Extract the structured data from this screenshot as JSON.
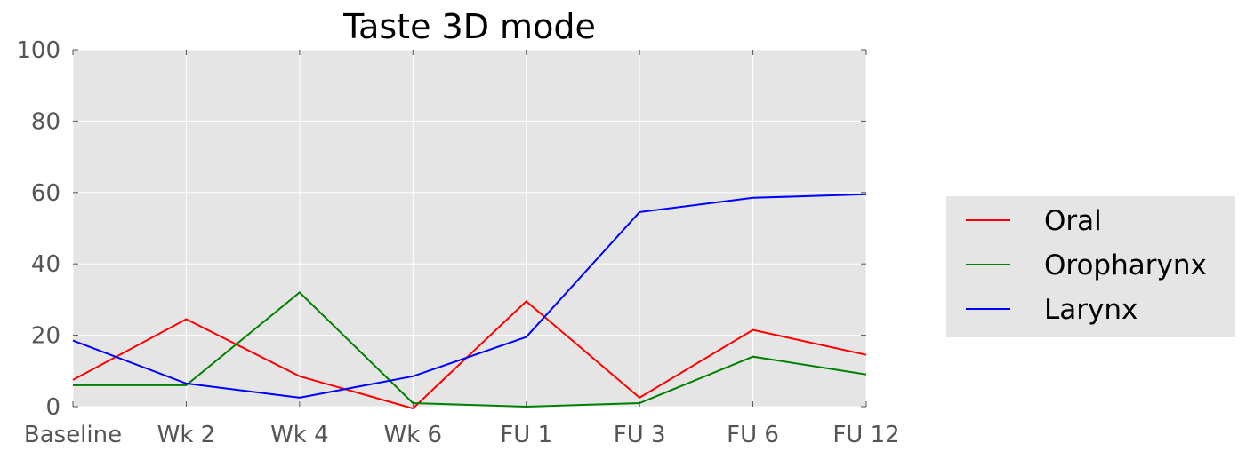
{
  "chart_data": {
    "type": "line",
    "title": "Taste 3D  mode",
    "xlabel": "",
    "ylabel": "",
    "categories": [
      "Baseline",
      "Wk 2",
      "Wk 4",
      "Wk 6",
      "FU 1",
      "FU 3",
      "FU 6",
      "FU 12"
    ],
    "ylim": [
      0,
      100
    ],
    "yticks": [
      0,
      20,
      40,
      60,
      80,
      100
    ],
    "grid": true,
    "legend_position": "right",
    "series": [
      {
        "name": "Oral",
        "color": "#ff0000",
        "values": [
          7.5,
          24.5,
          8.5,
          -0.5,
          29.5,
          2.5,
          21.5,
          14.5
        ]
      },
      {
        "name": "Oropharynx",
        "color": "#008000",
        "values": [
          6,
          6,
          32,
          1,
          0,
          1,
          14,
          9
        ]
      },
      {
        "name": "Larynx",
        "color": "#0000ff",
        "values": [
          18.5,
          6.5,
          2.5,
          8.5,
          19.5,
          54.5,
          58.5,
          59.5
        ]
      }
    ]
  }
}
